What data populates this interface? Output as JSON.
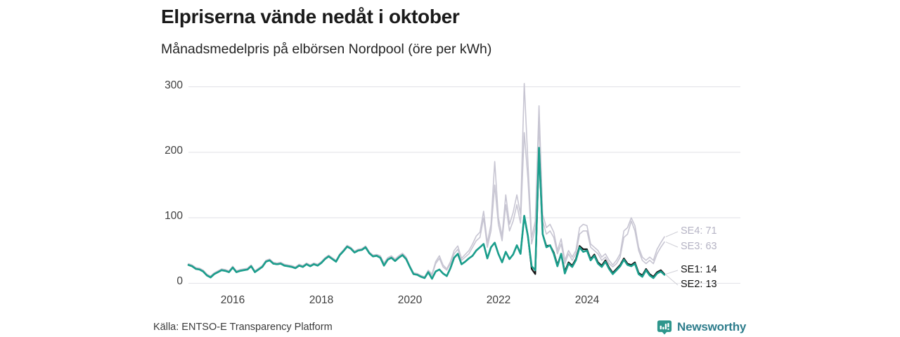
{
  "header": {
    "title": "Elpriserna vände nedåt i oktober",
    "subtitle": "Månadsmedelpris på elbörsen Nordpool (öre per kWh)"
  },
  "chart": {
    "y_ticks": [
      "300",
      "200",
      "100",
      "0"
    ],
    "x_ticks": [
      "2016",
      "2018",
      "2020",
      "2022",
      "2024"
    ],
    "end_labels": [
      {
        "series": "SE4",
        "text": "SE4: 71",
        "color": "#b5b3c4"
      },
      {
        "series": "SE3",
        "text": "SE3: 63",
        "color": "#b5b3c4"
      },
      {
        "series": "SE1",
        "text": "SE1: 14",
        "color": "#111111"
      },
      {
        "series": "SE2",
        "text": "SE2: 13",
        "color": "#111111"
      }
    ]
  },
  "chart_data": {
    "type": "line",
    "title": "Elpriserna vände nedåt i oktober",
    "subtitle": "Månadsmedelpris på elbörsen Nordpool (öre per kWh)",
    "ylabel": "öre per kWh",
    "x_start": "2015-01",
    "x_end": "2025-10",
    "x_frequency": "monthly",
    "x_tick_labels": [
      "2016",
      "2018",
      "2020",
      "2022",
      "2024"
    ],
    "y_ticks": [
      0,
      100,
      200,
      300
    ],
    "ylim": [
      0,
      310
    ],
    "grid": "horizontal",
    "legend_position": "right-end-labels",
    "end_values": {
      "SE1": 14,
      "SE2": 13,
      "SE3": 63,
      "SE4": 71
    },
    "series": [
      {
        "name": "SE4",
        "color": "#c7c5d2",
        "values": [
          30,
          28,
          24,
          23,
          20,
          14,
          11,
          16,
          19,
          22,
          21,
          19,
          26,
          19,
          21,
          22,
          23,
          28,
          19,
          23,
          27,
          35,
          37,
          32,
          31,
          32,
          29,
          28,
          27,
          25,
          29,
          27,
          31,
          28,
          31,
          29,
          33,
          39,
          43,
          39,
          35,
          45,
          51,
          58,
          55,
          49,
          52,
          53,
          57,
          48,
          43,
          44,
          42,
          31,
          39,
          42,
          37,
          42,
          46,
          40,
          27,
          16,
          15,
          12,
          10,
          20,
          14,
          33,
          42,
          28,
          22,
          33,
          50,
          57,
          38,
          44,
          50,
          60,
          72,
          78,
          110,
          62,
          90,
          186,
          100,
          72,
          135,
          90,
          108,
          135,
          105,
          305,
          185,
          70,
          95,
          271,
          105,
          85,
          90,
          78,
          50,
          68,
          35,
          50,
          40,
          50,
          85,
          90,
          88,
          60,
          55,
          50,
          40,
          45,
          35,
          28,
          35,
          45,
          80,
          85,
          100,
          88,
          55,
          40,
          35,
          40,
          35,
          52,
          62,
          71
        ]
      },
      {
        "name": "SE3",
        "color": "#c7c5d2",
        "values": [
          29,
          27,
          23,
          22,
          19,
          13,
          10,
          15,
          18,
          21,
          20,
          18,
          25,
          18,
          20,
          21,
          22,
          27,
          18,
          22,
          26,
          34,
          36,
          31,
          30,
          31,
          28,
          27,
          26,
          24,
          28,
          26,
          30,
          27,
          30,
          28,
          32,
          38,
          42,
          38,
          34,
          44,
          50,
          57,
          54,
          48,
          51,
          52,
          56,
          47,
          42,
          43,
          41,
          30,
          38,
          41,
          36,
          41,
          45,
          39,
          26,
          15,
          14,
          11,
          9,
          19,
          12,
          30,
          38,
          25,
          20,
          30,
          45,
          52,
          35,
          40,
          45,
          55,
          65,
          70,
          100,
          55,
          80,
          150,
          90,
          65,
          120,
          80,
          95,
          120,
          92,
          230,
          160,
          60,
          85,
          245,
          95,
          75,
          80,
          70,
          45,
          60,
          30,
          45,
          35,
          45,
          75,
          80,
          80,
          55,
          50,
          45,
          35,
          40,
          30,
          25,
          30,
          40,
          70,
          75,
          95,
          80,
          50,
          35,
          30,
          35,
          30,
          45,
          55,
          63
        ]
      },
      {
        "name": "SE1",
        "color": "#141414",
        "values": [
          28,
          26,
          22,
          21,
          18,
          12,
          9,
          14,
          17,
          20,
          19,
          17,
          24,
          17,
          19,
          20,
          21,
          26,
          17,
          21,
          25,
          33,
          35,
          30,
          29,
          30,
          27,
          26,
          25,
          23,
          27,
          25,
          29,
          26,
          29,
          27,
          31,
          37,
          41,
          37,
          33,
          43,
          49,
          56,
          53,
          47,
          50,
          51,
          55,
          46,
          41,
          42,
          39,
          27,
          36,
          39,
          34,
          39,
          43,
          37,
          25,
          14,
          13,
          10,
          8,
          17,
          7,
          18,
          21,
          15,
          11,
          23,
          39,
          45,
          29,
          33,
          38,
          42,
          50,
          55,
          60,
          38,
          55,
          62,
          45,
          32,
          48,
          37,
          44,
          58,
          45,
          103,
          72,
          22,
          14,
          205,
          75,
          57,
          58,
          47,
          28,
          45,
          18,
          32,
          27,
          37,
          57,
          52,
          52,
          37,
          44,
          32,
          27,
          35,
          24,
          16,
          22,
          28,
          38,
          30,
          28,
          32,
          16,
          12,
          22,
          14,
          10,
          17,
          20,
          14
        ]
      },
      {
        "name": "SE2",
        "color": "#1a9e8c",
        "values": [
          28,
          26,
          22,
          21,
          18,
          12,
          9,
          14,
          17,
          20,
          19,
          17,
          24,
          17,
          19,
          20,
          21,
          26,
          17,
          21,
          25,
          33,
          35,
          30,
          29,
          30,
          27,
          26,
          25,
          23,
          27,
          25,
          29,
          26,
          29,
          27,
          31,
          37,
          41,
          37,
          33,
          43,
          49,
          56,
          53,
          47,
          50,
          51,
          55,
          46,
          41,
          42,
          39,
          27,
          36,
          39,
          34,
          39,
          43,
          37,
          25,
          14,
          13,
          10,
          8,
          17,
          7,
          18,
          21,
          15,
          11,
          23,
          39,
          45,
          29,
          33,
          38,
          42,
          50,
          55,
          60,
          38,
          55,
          62,
          45,
          32,
          48,
          37,
          44,
          58,
          45,
          103,
          72,
          26,
          20,
          207,
          75,
          55,
          58,
          45,
          26,
          45,
          15,
          30,
          25,
          35,
          55,
          48,
          50,
          35,
          42,
          30,
          25,
          33,
          22,
          14,
          20,
          26,
          36,
          28,
          26,
          30,
          14,
          10,
          20,
          12,
          8,
          15,
          18,
          13
        ]
      }
    ]
  },
  "source": {
    "label": "Källa: ENTSO-E Transparency Platform"
  },
  "logo": {
    "text": "Newsworthy",
    "icon": "newsworthy-speech-bubble-bar-chart-icon",
    "icon_color": "#2e968c",
    "text_color": "#2e7d8c"
  }
}
